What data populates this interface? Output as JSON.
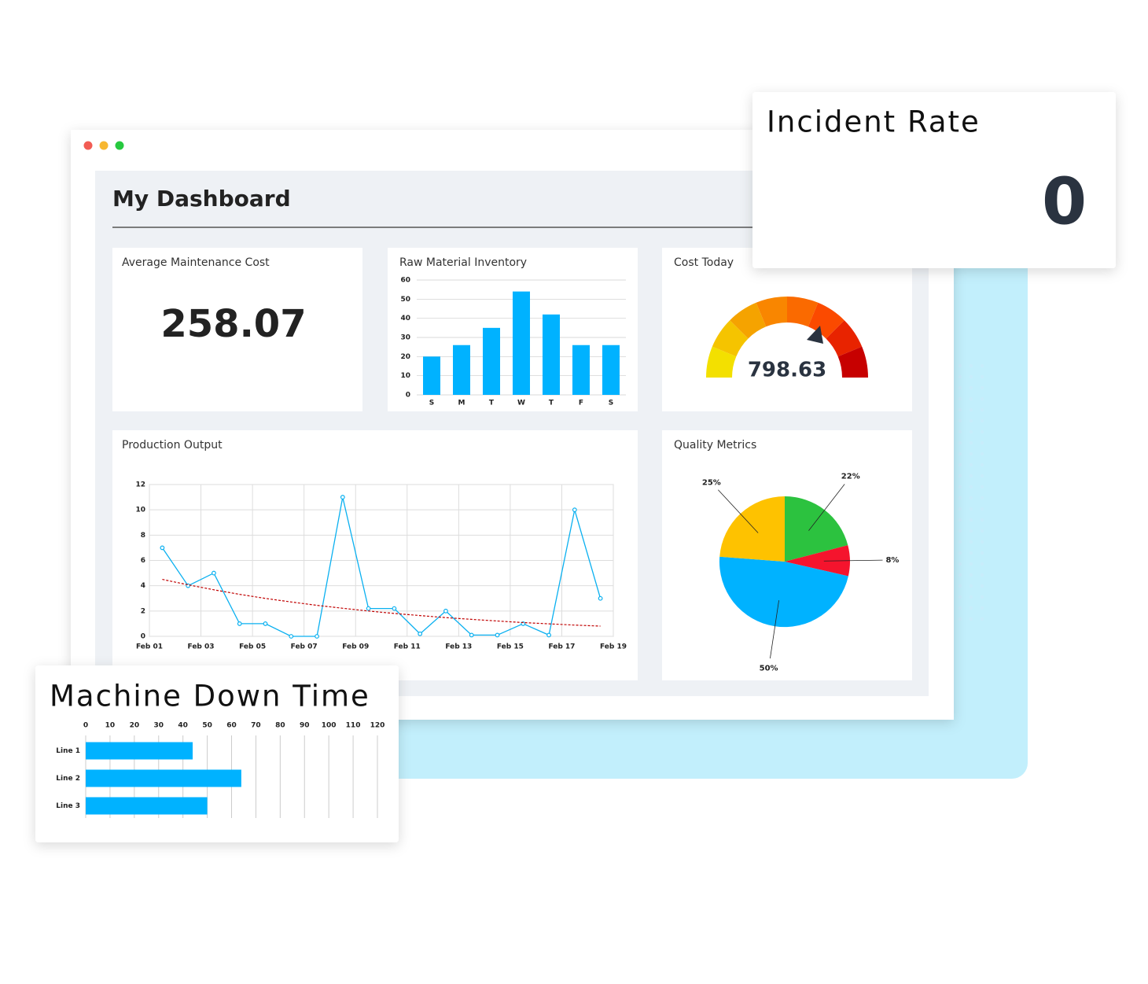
{
  "header": {
    "title": "My Dashboard"
  },
  "kpis": [
    {
      "title": "Average Maintenance Cost",
      "value": 258.07
    },
    {
      "title": "Cost Today",
      "value": 798.63
    },
    {
      "title": "Incident Rate",
      "value": 0
    }
  ],
  "chart_data": [
    {
      "type": "bar",
      "title": "Raw Material Inventory",
      "categories": [
        "S",
        "M",
        "T",
        "W",
        "T",
        "F",
        "S"
      ],
      "values": [
        20,
        26,
        35,
        54,
        42,
        26,
        26
      ],
      "color": "#00b2ff",
      "ylim": [
        0,
        60
      ],
      "yticks": [
        0,
        10,
        20,
        30,
        40,
        50,
        60
      ],
      "grid": true
    },
    {
      "type": "line",
      "title": "Production Output",
      "categories": [
        "Feb 01",
        null,
        "Feb 03",
        null,
        "Feb 05",
        null,
        "Feb 07",
        null,
        "Feb 09",
        null,
        "Feb 11",
        null,
        "Feb 13",
        null,
        "Feb 15",
        null,
        "Feb 17",
        null,
        "Feb 19"
      ],
      "series": [
        {
          "color": "#0ab0f0",
          "markers": true,
          "values": [
            7,
            4,
            5,
            1,
            1,
            0,
            0,
            11,
            2.2,
            2.2,
            0.2,
            2,
            0.1,
            0.1,
            1,
            0.1,
            10,
            3,
            null
          ]
        },
        {
          "color": "#c00000",
          "dashed": true,
          "values": [
            4.5,
            4.07,
            3.68,
            3.32,
            3.0,
            2.72,
            2.45,
            2.22,
            2.0,
            1.81,
            1.64,
            1.48,
            1.34,
            1.21,
            1.09,
            0.99,
            0.89,
            0.81,
            null
          ]
        }
      ],
      "ylim": [
        0,
        12
      ],
      "yticks": [
        0,
        2,
        4,
        6,
        8,
        10,
        12
      ],
      "grid": true
    },
    {
      "type": "pie",
      "title": "Quality Metrics",
      "values": [
        22,
        8,
        50,
        25
      ],
      "value_labels": [
        "22%",
        "8%",
        "50%",
        "25%"
      ],
      "colors": [
        "#2cc23f",
        "#f5142d",
        "#00b2ff",
        "#fec200"
      ]
    },
    {
      "type": "hbar",
      "title": "Machine Down Time",
      "categories": [
        "Line 1",
        "Line 2",
        "Line 3"
      ],
      "values": [
        44,
        64,
        50
      ],
      "color": "#00b2ff",
      "xlim": [
        0,
        120
      ],
      "xticks": [
        0,
        10,
        20,
        30,
        40,
        50,
        60,
        70,
        80,
        90,
        100,
        110,
        120
      ],
      "grid": true
    }
  ]
}
